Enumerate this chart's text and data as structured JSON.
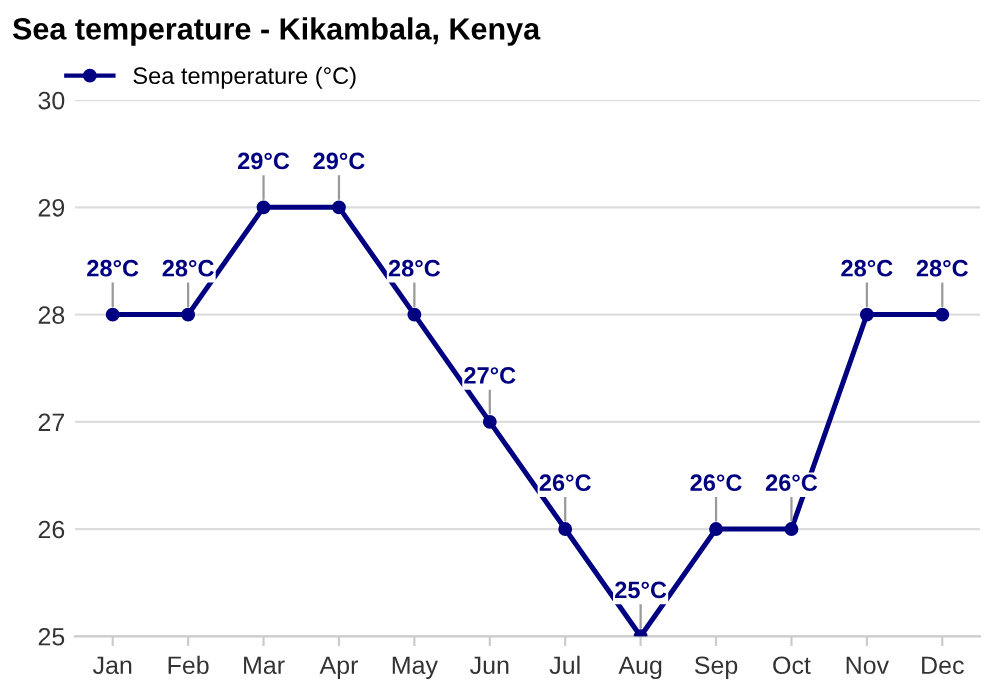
{
  "chart_data": {
    "type": "line",
    "title": "Sea temperature - Kikambala, Kenya",
    "categories": [
      "Jan",
      "Feb",
      "Mar",
      "Apr",
      "May",
      "Jun",
      "Jul",
      "Aug",
      "Sep",
      "Oct",
      "Nov",
      "Dec"
    ],
    "series": [
      {
        "name": "Sea temperature (°C)",
        "color": "#000080",
        "values": [
          28,
          28,
          29,
          29,
          28,
          27,
          26,
          25,
          26,
          26,
          28,
          28
        ],
        "value_labels": [
          "28°C",
          "28°C",
          "29°C",
          "29°C",
          "28°C",
          "27°C",
          "26°C",
          "25°C",
          "26°C",
          "26°C",
          "28°C",
          "28°C"
        ]
      }
    ],
    "ylim": [
      25,
      30
    ],
    "yticks": [
      25,
      26,
      27,
      28,
      29,
      30
    ],
    "grid": "y",
    "legend": "top left",
    "marker": "circle",
    "line_style": "solid"
  }
}
